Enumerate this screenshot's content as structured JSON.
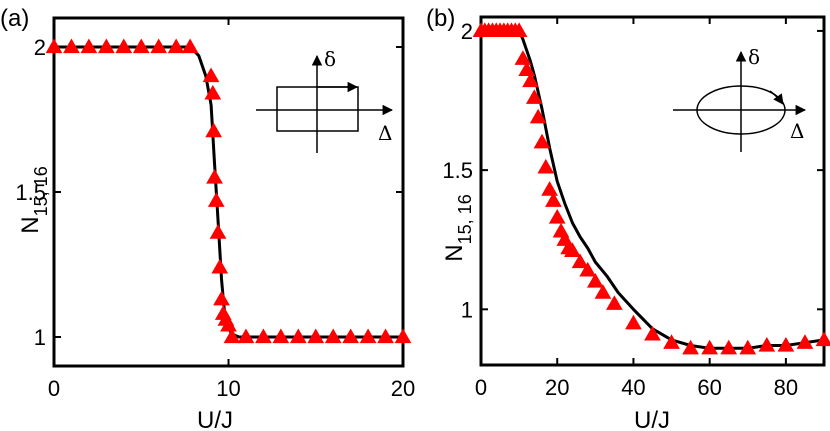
{
  "chart_data": [
    {
      "type": "line",
      "panel_label": "(a)",
      "xlabel": "U/J",
      "ylabel_main": "N",
      "ylabel_sub": "15, 16",
      "xlim": [
        0,
        20
      ],
      "ylim": [
        0.9,
        2.1
      ],
      "xticks": [
        0,
        10,
        20
      ],
      "xtick_labels": [
        "0",
        "10",
        "20"
      ],
      "yticks": [
        1,
        1.5,
        2
      ],
      "ytick_labels": [
        "1",
        "1.5",
        "2"
      ],
      "curve": {
        "x": [
          0,
          7.8,
          8.3,
          8.7,
          9.0,
          9.2,
          9.35,
          9.5,
          9.6,
          9.7,
          9.8,
          10.0,
          10.2,
          10.6,
          11.2,
          20
        ],
        "y": [
          2.0,
          2.0,
          1.97,
          1.9,
          1.8,
          1.6,
          1.45,
          1.3,
          1.2,
          1.13,
          1.07,
          1.03,
          1.01,
          1.0,
          1.0,
          1.0
        ]
      },
      "markers": {
        "x": [
          0,
          1,
          2,
          3,
          4,
          5,
          6,
          7,
          7.8,
          9.0,
          9.1,
          9.15,
          9.2,
          9.3,
          9.4,
          9.5,
          9.6,
          9.7,
          9.85,
          10.0,
          10.2,
          11,
          12,
          13,
          14,
          15,
          16,
          17,
          18,
          19,
          20
        ],
        "y": [
          2.0,
          2.0,
          2.0,
          2.0,
          2.0,
          2.0,
          2.0,
          2.0,
          2.0,
          1.9,
          1.84,
          1.71,
          1.55,
          1.47,
          1.36,
          1.24,
          1.13,
          1.08,
          1.06,
          1.04,
          1.0,
          1.0,
          1.0,
          1.0,
          1.0,
          1.0,
          1.0,
          1.0,
          1.0,
          1.0,
          1.0
        ]
      },
      "inset": {
        "shape": "rectangle",
        "x_label": "Δ",
        "y_label": "δ"
      }
    },
    {
      "type": "line",
      "panel_label": "(b)",
      "xlabel": "U/J",
      "ylabel_main": "N",
      "ylabel_sub": "15, 16",
      "xlim": [
        0,
        90
      ],
      "ylim": [
        0.8,
        2.05
      ],
      "xticks": [
        0,
        20,
        40,
        60,
        80
      ],
      "xtick_labels": [
        "0",
        "20",
        "40",
        "60",
        "80"
      ],
      "yticks": [
        1,
        1.5,
        2
      ],
      "ytick_labels": [
        "1",
        "1.5",
        "2"
      ],
      "curve": {
        "x": [
          0,
          9,
          10,
          11,
          12,
          13,
          14,
          15,
          16,
          17,
          18,
          19,
          20,
          22,
          24,
          26,
          28,
          30,
          33,
          36,
          40,
          45,
          50,
          55,
          60,
          65,
          70,
          75,
          80,
          85,
          90
        ],
        "y": [
          2.0,
          2.0,
          2.0,
          1.97,
          1.93,
          1.89,
          1.84,
          1.78,
          1.72,
          1.65,
          1.58,
          1.52,
          1.46,
          1.38,
          1.31,
          1.26,
          1.22,
          1.17,
          1.12,
          1.06,
          1.0,
          0.93,
          0.89,
          0.87,
          0.86,
          0.86,
          0.86,
          0.87,
          0.87,
          0.88,
          0.89
        ]
      },
      "markers": {
        "x": [
          0,
          1,
          2,
          3,
          4,
          5,
          6,
          7,
          8,
          9,
          10,
          11,
          12,
          13,
          14,
          15,
          16,
          17,
          18,
          19,
          20,
          21,
          22,
          23,
          24,
          26,
          28,
          30,
          32,
          35,
          40,
          45,
          50,
          55,
          60,
          65,
          70,
          75,
          80,
          85,
          90
        ],
        "y": [
          2.0,
          2.0,
          2.0,
          2.0,
          2.0,
          2.0,
          2.0,
          2.0,
          2.0,
          2.0,
          2.0,
          1.9,
          1.86,
          1.82,
          1.76,
          1.69,
          1.6,
          1.51,
          1.43,
          1.39,
          1.33,
          1.28,
          1.25,
          1.22,
          1.21,
          1.17,
          1.14,
          1.1,
          1.06,
          1.02,
          0.95,
          0.91,
          0.88,
          0.86,
          0.86,
          0.86,
          0.86,
          0.87,
          0.87,
          0.88,
          0.89
        ]
      },
      "inset": {
        "shape": "ellipse",
        "x_label": "Δ",
        "y_label": "δ"
      }
    }
  ],
  "colors": {
    "marker": "#ff0000",
    "curve": "#000000",
    "axes": "#000000",
    "background": "#ffffff"
  }
}
